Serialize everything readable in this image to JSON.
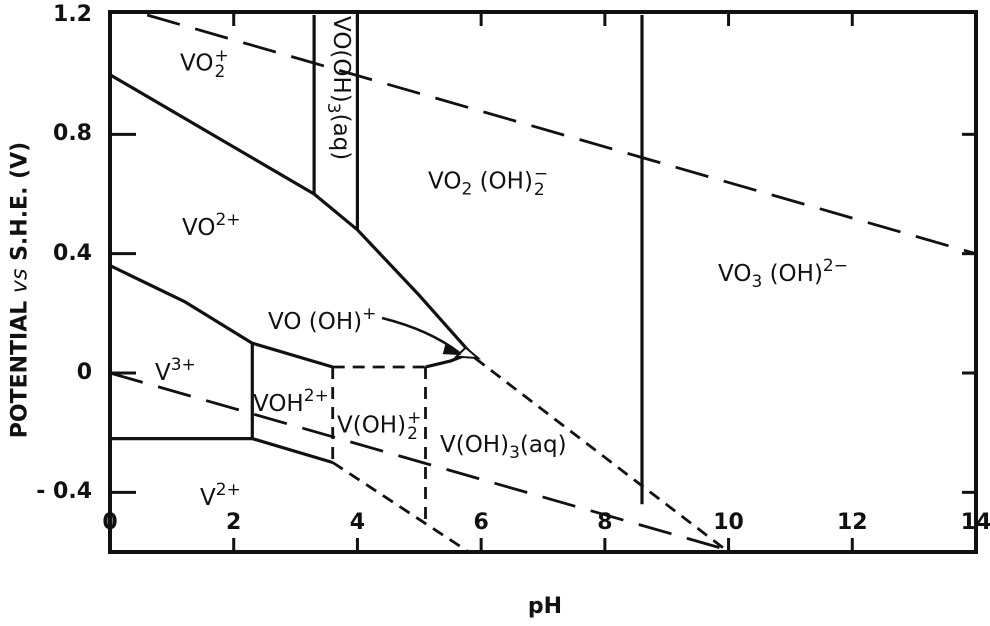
{
  "chart_data": {
    "type": "line",
    "title": "",
    "xlabel": "pH",
    "ylabel_parts": [
      "POTENTIAL ",
      "vs",
      " S.H.E. (V)"
    ],
    "xlim": [
      0,
      14
    ],
    "ylim": [
      -0.6,
      1.2
    ],
    "x_ticks": [
      "0",
      "2",
      "4",
      "6",
      "8",
      "10",
      "12",
      "14"
    ],
    "y_ticks": [
      "1.2",
      "0.8",
      "0.4",
      "0",
      "- 0.4"
    ],
    "y_tick_values": [
      1.2,
      0.8,
      0.4,
      0,
      -0.4
    ],
    "x_tick_values": [
      0,
      2,
      4,
      6,
      8,
      10,
      12,
      14
    ],
    "grid": false,
    "line_color": "#111111",
    "series": [
      {
        "style": "solid",
        "points": [
          [
            0,
            1.0
          ],
          [
            3.3,
            0.6
          ],
          [
            4.0,
            0.48
          ],
          [
            5.0,
            0.26
          ],
          [
            5.9,
            0.05
          ]
        ]
      },
      {
        "style": "solid",
        "points": [
          [
            3.3,
            0.6
          ],
          [
            3.3,
            1.2
          ]
        ]
      },
      {
        "style": "solid",
        "points": [
          [
            4.0,
            0.48
          ],
          [
            4.0,
            1.2
          ]
        ]
      },
      {
        "style": "solid",
        "points": [
          [
            8.6,
            1.2
          ],
          [
            8.6,
            -0.44
          ]
        ]
      },
      {
        "style": "solid",
        "points": [
          [
            0,
            0.36
          ],
          [
            1.2,
            0.24
          ],
          [
            2.3,
            0.1
          ],
          [
            3.6,
            0.02
          ]
        ]
      },
      {
        "style": "dashed",
        "points": [
          [
            3.6,
            0.02
          ],
          [
            5.1,
            0.02
          ]
        ]
      },
      {
        "style": "solid",
        "points": [
          [
            5.1,
            0.02
          ],
          [
            5.5,
            0.04
          ],
          [
            5.75,
            0.06
          ]
        ]
      },
      {
        "style": "solid",
        "points": [
          [
            2.3,
            0.1
          ],
          [
            2.3,
            -0.22
          ]
        ]
      },
      {
        "style": "solid",
        "points": [
          [
            0,
            -0.22
          ],
          [
            2.3,
            -0.22
          ]
        ]
      },
      {
        "style": "solid",
        "points": [
          [
            2.3,
            -0.22
          ],
          [
            3.6,
            -0.3
          ]
        ]
      },
      {
        "style": "dashed",
        "points": [
          [
            3.6,
            -0.3
          ],
          [
            5.8,
            -0.6
          ]
        ]
      },
      {
        "style": "dashed",
        "points": [
          [
            3.6,
            0.02
          ],
          [
            3.6,
            -0.3
          ]
        ]
      },
      {
        "style": "dashed",
        "points": [
          [
            5.1,
            0.02
          ],
          [
            5.1,
            -0.49
          ]
        ]
      },
      {
        "style": "dashed",
        "points": [
          [
            5.9,
            0.05
          ],
          [
            10.0,
            -0.6
          ]
        ]
      },
      {
        "style": "longdash",
        "points": [
          [
            0.6,
            1.2
          ],
          [
            14,
            0.4
          ]
        ]
      },
      {
        "style": "longdash",
        "points": [
          [
            0,
            0.0
          ],
          [
            10.1,
            -0.6
          ]
        ]
      }
    ],
    "annotations": [
      {
        "text": "VO(OH)+",
        "arrow_to": [
          5.75,
          0.06
        ]
      }
    ],
    "regions": [
      {
        "id": "vo2-plus",
        "parts": [
          {
            "t": "VO"
          },
          {
            "sub": "2",
            "sup": "+"
          }
        ]
      },
      {
        "id": "vooh3-aq",
        "parts": [
          {
            "t": "VO(OH)"
          },
          {
            "sub": "3"
          },
          {
            "t": "(aq)"
          }
        ]
      },
      {
        "id": "vo-2plus",
        "parts": [
          {
            "t": "VO"
          },
          {
            "sup": "2+"
          }
        ]
      },
      {
        "id": "vo2oh2-minus",
        "parts": [
          {
            "t": "VO"
          },
          {
            "sub": "2"
          },
          {
            "t": " (OH)"
          },
          {
            "sub": "2",
            "sup": "−"
          }
        ]
      },
      {
        "id": "vo3oh-2minus",
        "parts": [
          {
            "t": "VO"
          },
          {
            "sub": "3"
          },
          {
            "t": " (OH)"
          },
          {
            "sup": "2−"
          }
        ]
      },
      {
        "id": "vooh-plus",
        "parts": [
          {
            "t": "VO (OH)"
          },
          {
            "sup": "+"
          }
        ]
      },
      {
        "id": "v-3plus",
        "parts": [
          {
            "t": "V"
          },
          {
            "sup": "3+"
          }
        ]
      },
      {
        "id": "voh-2plus",
        "parts": [
          {
            "t": "VOH"
          },
          {
            "sup": "2+"
          }
        ]
      },
      {
        "id": "voh2-plus",
        "parts": [
          {
            "t": "V(OH)"
          },
          {
            "sub": "2",
            "sup": "+"
          }
        ]
      },
      {
        "id": "voh3-aq",
        "parts": [
          {
            "t": "V(OH)"
          },
          {
            "sub": "3"
          },
          {
            "t": "(aq)"
          }
        ]
      },
      {
        "id": "v-2plus",
        "parts": [
          {
            "t": "V"
          },
          {
            "sup": "2+"
          }
        ]
      }
    ]
  }
}
